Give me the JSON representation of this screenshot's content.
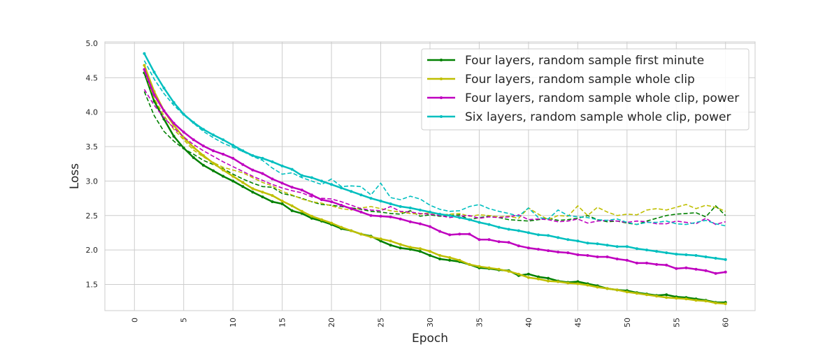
{
  "chart_data": {
    "type": "line",
    "xlabel": "Epoch",
    "ylabel": "Loss",
    "xlim": [
      -3,
      63
    ],
    "ylim": [
      1.12,
      5.02
    ],
    "xticks": [
      0,
      5,
      10,
      15,
      20,
      25,
      30,
      35,
      40,
      45,
      50,
      55,
      60
    ],
    "yticks": [
      1.5,
      2.0,
      2.5,
      3.0,
      3.5,
      4.0,
      4.5,
      5.0
    ],
    "grid": true,
    "legend_position": "top-right",
    "series": [
      {
        "name": "Four layers, random sample first minute",
        "color": "#008000",
        "train": [
          4.57,
          4.16,
          3.9,
          3.65,
          3.48,
          3.34,
          3.23,
          3.15,
          3.07,
          3.0,
          2.92,
          2.84,
          2.77,
          2.7,
          2.67,
          2.57,
          2.53,
          2.46,
          2.42,
          2.37,
          2.31,
          2.28,
          2.23,
          2.2,
          2.13,
          2.07,
          2.03,
          2.01,
          1.98,
          1.92,
          1.87,
          1.85,
          1.83,
          1.79,
          1.74,
          1.73,
          1.71,
          1.7,
          1.63,
          1.65,
          1.61,
          1.59,
          1.55,
          1.53,
          1.54,
          1.51,
          1.48,
          1.44,
          1.42,
          1.41,
          1.38,
          1.36,
          1.34,
          1.35,
          1.32,
          1.31,
          1.29,
          1.27,
          1.24,
          1.24
        ],
        "val": [
          4.3,
          3.95,
          3.72,
          3.58,
          3.47,
          3.39,
          3.3,
          3.24,
          3.18,
          3.1,
          3.03,
          2.97,
          2.92,
          2.91,
          2.82,
          2.79,
          2.75,
          2.7,
          2.66,
          2.65,
          2.63,
          2.61,
          2.59,
          2.56,
          2.55,
          2.53,
          2.52,
          2.57,
          2.49,
          2.51,
          2.49,
          2.5,
          2.51,
          2.44,
          2.47,
          2.49,
          2.47,
          2.44,
          2.43,
          2.42,
          2.44,
          2.46,
          2.43,
          2.44,
          2.46,
          2.5,
          2.44,
          2.41,
          2.42,
          2.39,
          2.37,
          2.42,
          2.46,
          2.5,
          2.52,
          2.53,
          2.54,
          2.48,
          2.64,
          2.5
        ]
      },
      {
        "name": "Four layers, random sample whole clip",
        "color": "#bfbf00",
        "train": [
          4.68,
          4.3,
          4.02,
          3.81,
          3.63,
          3.49,
          3.37,
          3.26,
          3.16,
          3.07,
          2.98,
          2.89,
          2.84,
          2.79,
          2.71,
          2.64,
          2.56,
          2.49,
          2.44,
          2.39,
          2.33,
          2.28,
          2.23,
          2.19,
          2.16,
          2.13,
          2.08,
          2.04,
          2.02,
          1.98,
          1.92,
          1.89,
          1.85,
          1.79,
          1.76,
          1.74,
          1.72,
          1.69,
          1.65,
          1.6,
          1.58,
          1.55,
          1.54,
          1.52,
          1.51,
          1.49,
          1.46,
          1.44,
          1.42,
          1.39,
          1.37,
          1.35,
          1.33,
          1.31,
          1.3,
          1.29,
          1.27,
          1.26,
          1.23,
          1.22
        ],
        "val": [
          4.6,
          4.2,
          3.95,
          3.75,
          3.6,
          3.45,
          3.35,
          3.27,
          3.2,
          3.16,
          3.12,
          3.05,
          2.98,
          2.93,
          2.85,
          2.8,
          2.74,
          2.7,
          2.68,
          2.64,
          2.6,
          2.58,
          2.61,
          2.63,
          2.6,
          2.57,
          2.55,
          2.53,
          2.52,
          2.54,
          2.51,
          2.52,
          2.53,
          2.49,
          2.51,
          2.5,
          2.48,
          2.49,
          2.46,
          2.61,
          2.52,
          2.44,
          2.5,
          2.49,
          2.64,
          2.5,
          2.62,
          2.55,
          2.5,
          2.52,
          2.51,
          2.58,
          2.6,
          2.58,
          2.62,
          2.66,
          2.6,
          2.65,
          2.62,
          2.56
        ]
      },
      {
        "name": "Four layers, random sample whole clip, power",
        "color": "#bf00bf",
        "train": [
          4.62,
          4.25,
          4.02,
          3.84,
          3.71,
          3.6,
          3.51,
          3.44,
          3.39,
          3.33,
          3.24,
          3.16,
          3.11,
          3.03,
          2.97,
          2.91,
          2.87,
          2.8,
          2.73,
          2.7,
          2.65,
          2.6,
          2.55,
          2.5,
          2.49,
          2.48,
          2.45,
          2.41,
          2.38,
          2.34,
          2.27,
          2.22,
          2.23,
          2.23,
          2.15,
          2.15,
          2.12,
          2.11,
          2.06,
          2.03,
          2.01,
          1.99,
          1.97,
          1.96,
          1.93,
          1.92,
          1.9,
          1.9,
          1.87,
          1.85,
          1.81,
          1.81,
          1.79,
          1.78,
          1.73,
          1.74,
          1.72,
          1.7,
          1.66,
          1.68
        ],
        "val": [
          4.33,
          4.1,
          3.92,
          3.77,
          3.64,
          3.53,
          3.44,
          3.36,
          3.28,
          3.21,
          3.14,
          3.07,
          3.01,
          2.95,
          2.9,
          2.86,
          2.83,
          2.77,
          2.75,
          2.74,
          2.7,
          2.65,
          2.6,
          2.58,
          2.57,
          2.63,
          2.56,
          2.55,
          2.53,
          2.52,
          2.5,
          2.47,
          2.49,
          2.5,
          2.46,
          2.48,
          2.47,
          2.48,
          2.51,
          2.44,
          2.45,
          2.44,
          2.41,
          2.42,
          2.45,
          2.39,
          2.42,
          2.43,
          2.42,
          2.4,
          2.42,
          2.41,
          2.38,
          2.38,
          2.42,
          2.4,
          2.38,
          2.46,
          2.37,
          2.41
        ]
      },
      {
        "name": "Six layers, random sample whole clip, power",
        "color": "#00bfbf",
        "train": [
          4.85,
          4.58,
          4.35,
          4.14,
          3.97,
          3.85,
          3.75,
          3.67,
          3.6,
          3.52,
          3.44,
          3.37,
          3.33,
          3.28,
          3.22,
          3.17,
          3.08,
          3.05,
          3.0,
          2.95,
          2.9,
          2.85,
          2.8,
          2.75,
          2.71,
          2.67,
          2.63,
          2.61,
          2.58,
          2.55,
          2.52,
          2.5,
          2.47,
          2.44,
          2.4,
          2.37,
          2.33,
          2.3,
          2.28,
          2.25,
          2.22,
          2.21,
          2.18,
          2.15,
          2.13,
          2.1,
          2.09,
          2.07,
          2.05,
          2.05,
          2.02,
          2.0,
          1.98,
          1.96,
          1.94,
          1.93,
          1.92,
          1.9,
          1.88,
          1.86
        ],
        "val": [
          4.75,
          4.48,
          4.27,
          4.1,
          3.96,
          3.84,
          3.72,
          3.63,
          3.55,
          3.49,
          3.43,
          3.36,
          3.3,
          3.19,
          3.1,
          3.12,
          3.05,
          3.0,
          2.95,
          3.03,
          2.92,
          2.93,
          2.92,
          2.8,
          2.97,
          2.76,
          2.73,
          2.78,
          2.74,
          2.65,
          2.59,
          2.56,
          2.57,
          2.63,
          2.66,
          2.6,
          2.56,
          2.53,
          2.49,
          2.61,
          2.47,
          2.45,
          2.58,
          2.5,
          2.48,
          2.47,
          2.44,
          2.43,
          2.45,
          2.4,
          2.37,
          2.4,
          2.4,
          2.42,
          2.38,
          2.37,
          2.4,
          2.43,
          2.38,
          2.35
        ]
      }
    ]
  }
}
